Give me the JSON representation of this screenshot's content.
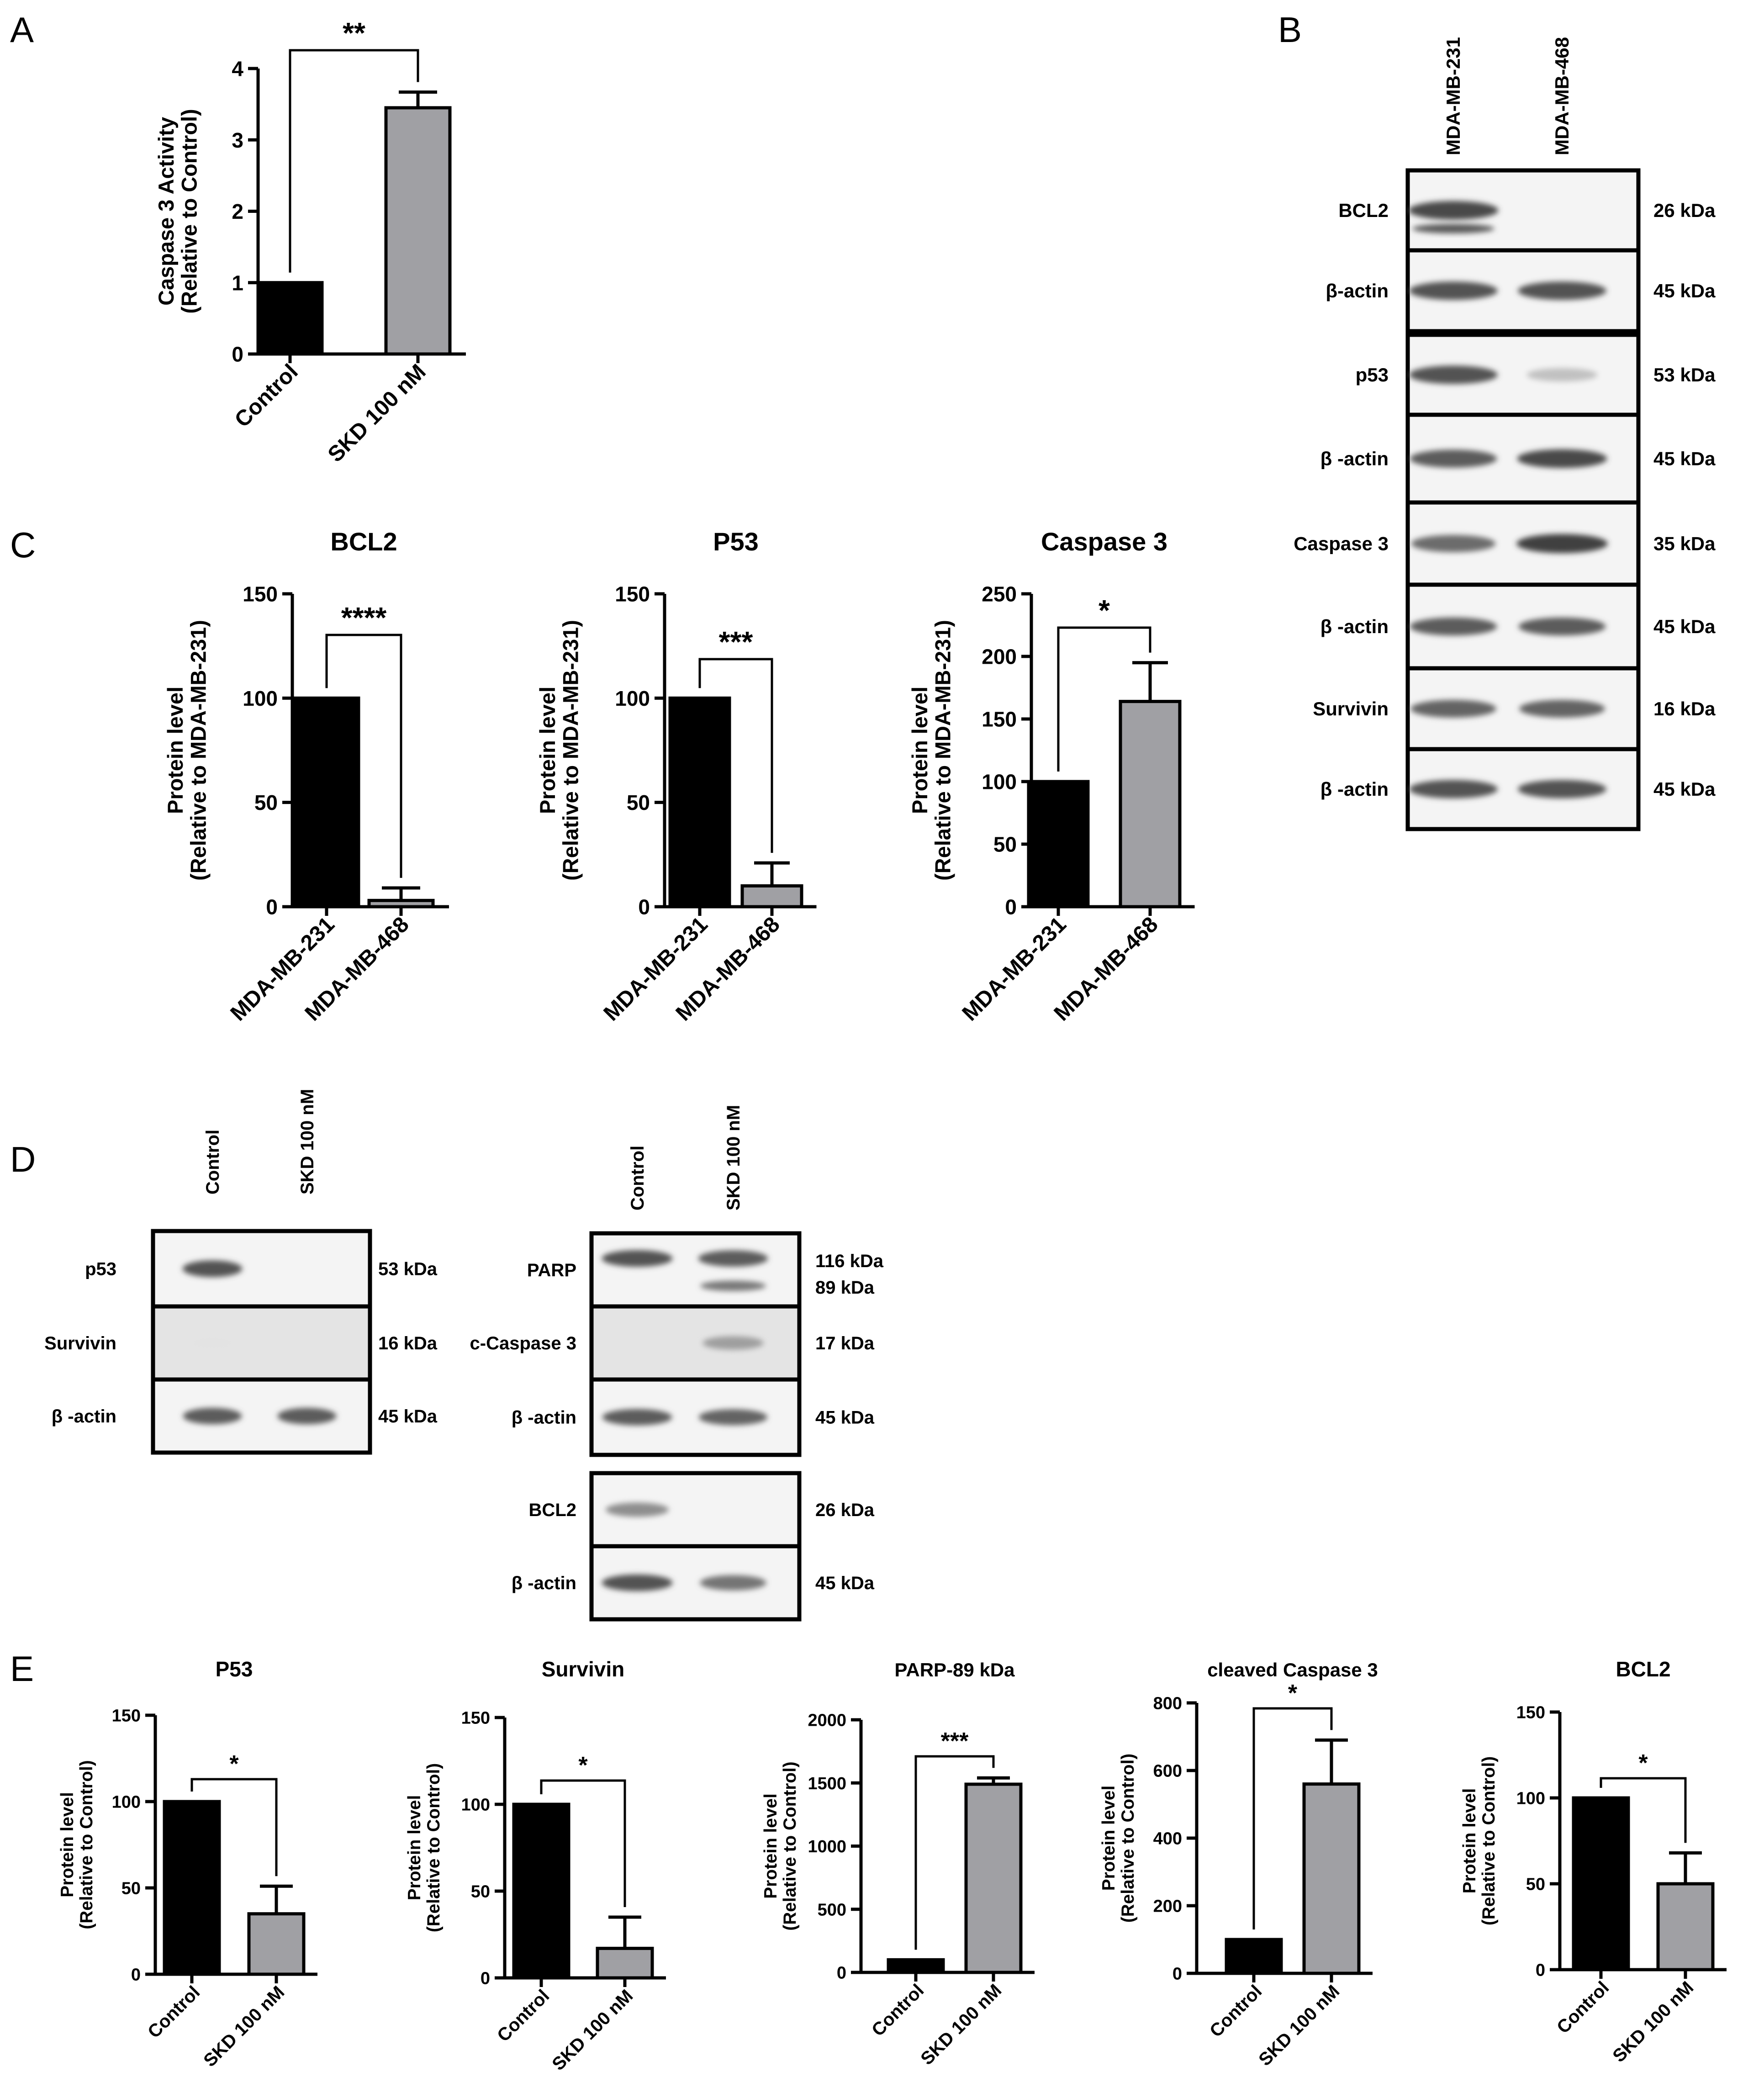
{
  "panels": {
    "A": {
      "label": "A"
    },
    "B": {
      "label": "B"
    },
    "C": {
      "label": "C"
    },
    "D": {
      "label": "D"
    },
    "E": {
      "label": "E"
    }
  },
  "chart_data": [
    {
      "id": "A",
      "panel": "A",
      "type": "bar",
      "title": "",
      "categories": [
        "Control",
        "SKD 100 nM"
      ],
      "values": [
        1.0,
        3.45
      ],
      "errors": [
        0,
        0.22
      ],
      "ylabel": "Caspase 3 Activity (Relative to Control)",
      "ylabel_lines": [
        "Caspase 3 Activity",
        "(Relative to Control)"
      ],
      "ylim": [
        0,
        4
      ],
      "yticks": [
        0,
        1,
        2,
        3,
        4
      ],
      "significance": "**",
      "colors": [
        "#000000",
        "#a0a0a4"
      ]
    },
    {
      "id": "C1",
      "panel": "C",
      "type": "bar",
      "title": "BCL2",
      "categories": [
        "MDA-MB-231",
        "MDA-MB-468"
      ],
      "values": [
        100,
        3
      ],
      "errors": [
        0,
        6
      ],
      "ylabel": "Protein level (Relative to MDA-MB-231)",
      "ylabel_lines": [
        "Protein level",
        "(Relative to MDA-MB-231)"
      ],
      "ylim": [
        0,
        150
      ],
      "yticks": [
        0,
        50,
        100,
        150
      ],
      "significance": "****",
      "colors": [
        "#000000",
        "#a0a0a4"
      ]
    },
    {
      "id": "C2",
      "panel": "C",
      "type": "bar",
      "title": "P53",
      "categories": [
        "MDA-MB-231",
        "MDA-MB-468"
      ],
      "values": [
        100,
        10
      ],
      "errors": [
        0,
        11
      ],
      "ylabel": "Protein level (Relative to MDA-MB-231)",
      "ylabel_lines": [
        "Protein level",
        "(Relative to MDA-MB-231)"
      ],
      "ylim": [
        0,
        150
      ],
      "yticks": [
        0,
        50,
        100,
        150
      ],
      "significance": "***",
      "colors": [
        "#000000",
        "#a0a0a4"
      ]
    },
    {
      "id": "C3",
      "panel": "C",
      "type": "bar",
      "title": "Caspase 3",
      "categories": [
        "MDA-MB-231",
        "MDA-MB-468"
      ],
      "values": [
        100,
        164
      ],
      "errors": [
        0,
        31
      ],
      "ylabel": "Protein level (Relative to MDA-MB-231)",
      "ylabel_lines": [
        "Protein level",
        "(Relative to MDA-MB-231)"
      ],
      "ylim": [
        0,
        250
      ],
      "yticks": [
        0,
        50,
        100,
        150,
        200,
        250
      ],
      "significance": "*",
      "colors": [
        "#000000",
        "#a0a0a4"
      ]
    },
    {
      "id": "E1",
      "panel": "E",
      "type": "bar",
      "title": "P53",
      "categories": [
        "Control",
        "SKD 100 nM"
      ],
      "values": [
        100,
        35
      ],
      "errors": [
        0,
        16
      ],
      "ylabel": "Protein level (Relative to Control)",
      "ylabel_lines": [
        "Protein level",
        "(Relative to Control)"
      ],
      "ylim": [
        0,
        150
      ],
      "yticks": [
        0,
        50,
        100,
        150
      ],
      "significance": "*",
      "colors": [
        "#000000",
        "#a0a0a4"
      ]
    },
    {
      "id": "E2",
      "panel": "E",
      "type": "bar",
      "title": "Survivin",
      "categories": [
        "Control",
        "SKD 100 nM"
      ],
      "values": [
        100,
        17
      ],
      "errors": [
        0,
        18
      ],
      "ylabel": "Protein level (Relative to Control)",
      "ylabel_lines": [
        "Protein level",
        "(Relative to Control)"
      ],
      "ylim": [
        0,
        150
      ],
      "yticks": [
        0,
        50,
        100,
        150
      ],
      "significance": "*",
      "colors": [
        "#000000",
        "#a0a0a4"
      ]
    },
    {
      "id": "E3",
      "panel": "E",
      "type": "bar",
      "title": "PARP-89 kDa",
      "categories": [
        "Control",
        "SKD 100 nM"
      ],
      "values": [
        100,
        1490
      ],
      "errors": [
        0,
        50
      ],
      "ylabel": "Protein level (Relative to Control)",
      "ylabel_lines": [
        "Protein level",
        "(Relative to Control)"
      ],
      "ylim": [
        0,
        2000
      ],
      "yticks": [
        0,
        500,
        1000,
        1500,
        2000
      ],
      "significance": "***",
      "colors": [
        "#000000",
        "#a0a0a4"
      ]
    },
    {
      "id": "E4",
      "panel": "E",
      "type": "bar",
      "title": "cleaved Caspase 3",
      "categories": [
        "Control",
        "SKD 100 nM"
      ],
      "values": [
        100,
        560
      ],
      "errors": [
        0,
        130
      ],
      "ylabel": "Protein level (Relative to Control)",
      "ylabel_lines": [
        "Protein level",
        "(Relative to Control)"
      ],
      "ylim": [
        0,
        800
      ],
      "yticks": [
        0,
        200,
        400,
        600,
        800
      ],
      "significance": "*",
      "colors": [
        "#000000",
        "#a0a0a4"
      ]
    },
    {
      "id": "E5",
      "panel": "E",
      "type": "bar",
      "title": "BCL2",
      "categories": [
        "Control",
        "SKD 100 nM"
      ],
      "values": [
        100,
        50
      ],
      "errors": [
        0,
        18
      ],
      "ylabel": "Protein level (Relative to Control)",
      "ylabel_lines": [
        "Protein level",
        "(Relative to Control)"
      ],
      "ylim": [
        0,
        150
      ],
      "yticks": [
        0,
        50,
        100,
        150
      ],
      "significance": "*",
      "colors": [
        "#000000",
        "#a0a0a4"
      ]
    }
  ],
  "blots": {
    "B": {
      "lanes": [
        "MDA-MB-231",
        "MDA-MB-468"
      ],
      "rows": [
        {
          "protein": "BCL2",
          "kda": "26 kDa",
          "intensity": [
            0.95,
            0.0
          ]
        },
        {
          "protein": "β-actin",
          "kda": "45 kDa",
          "intensity": [
            0.9,
            0.9
          ]
        },
        {
          "protein": "p53",
          "kda": "53 kDa",
          "intensity": [
            0.9,
            0.25
          ]
        },
        {
          "protein": "β -actin",
          "kda": "45 kDa",
          "intensity": [
            0.85,
            0.95
          ]
        },
        {
          "protein": "Caspase 3",
          "kda": "35 kDa",
          "intensity": [
            0.75,
            1.0
          ]
        },
        {
          "protein": "β -actin",
          "kda": "45 kDa",
          "intensity": [
            0.85,
            0.85
          ]
        },
        {
          "protein": "Survivin",
          "kda": "16 kDa",
          "intensity": [
            0.8,
            0.8
          ]
        },
        {
          "protein": "β -actin",
          "kda": "45 kDa",
          "intensity": [
            0.9,
            0.9
          ]
        }
      ]
    },
    "D_left": {
      "lanes": [
        "Control",
        "SKD 100 nM"
      ],
      "rows": [
        {
          "protein": "p53",
          "kda": "53 kDa",
          "intensity": [
            0.9,
            0.0
          ]
        },
        {
          "protein": "Survivin",
          "kda": "16 kDa",
          "intensity": [
            0.05,
            0.0
          ]
        },
        {
          "protein": "β -actin",
          "kda": "45 kDa",
          "intensity": [
            0.85,
            0.85
          ]
        }
      ]
    },
    "D_right": {
      "lanes": [
        "Control",
        "SKD 100 nM"
      ],
      "rows": [
        {
          "protein": "PARP",
          "kda": "116 kDa",
          "kda2": "89 kDa",
          "intensity": [
            0.9,
            0.85
          ]
        },
        {
          "protein": "c-Caspase 3",
          "kda": "17 kDa",
          "intensity": [
            0.0,
            0.45
          ]
        },
        {
          "protein": "β -actin",
          "kda": "45 kDa",
          "intensity": [
            0.85,
            0.8
          ]
        },
        {
          "protein": "BCL2",
          "kda": "26 kDa",
          "intensity": [
            0.55,
            0.0
          ]
        },
        {
          "protein": "β -actin",
          "kda": "45 kDa",
          "intensity": [
            0.9,
            0.7
          ]
        }
      ]
    }
  }
}
